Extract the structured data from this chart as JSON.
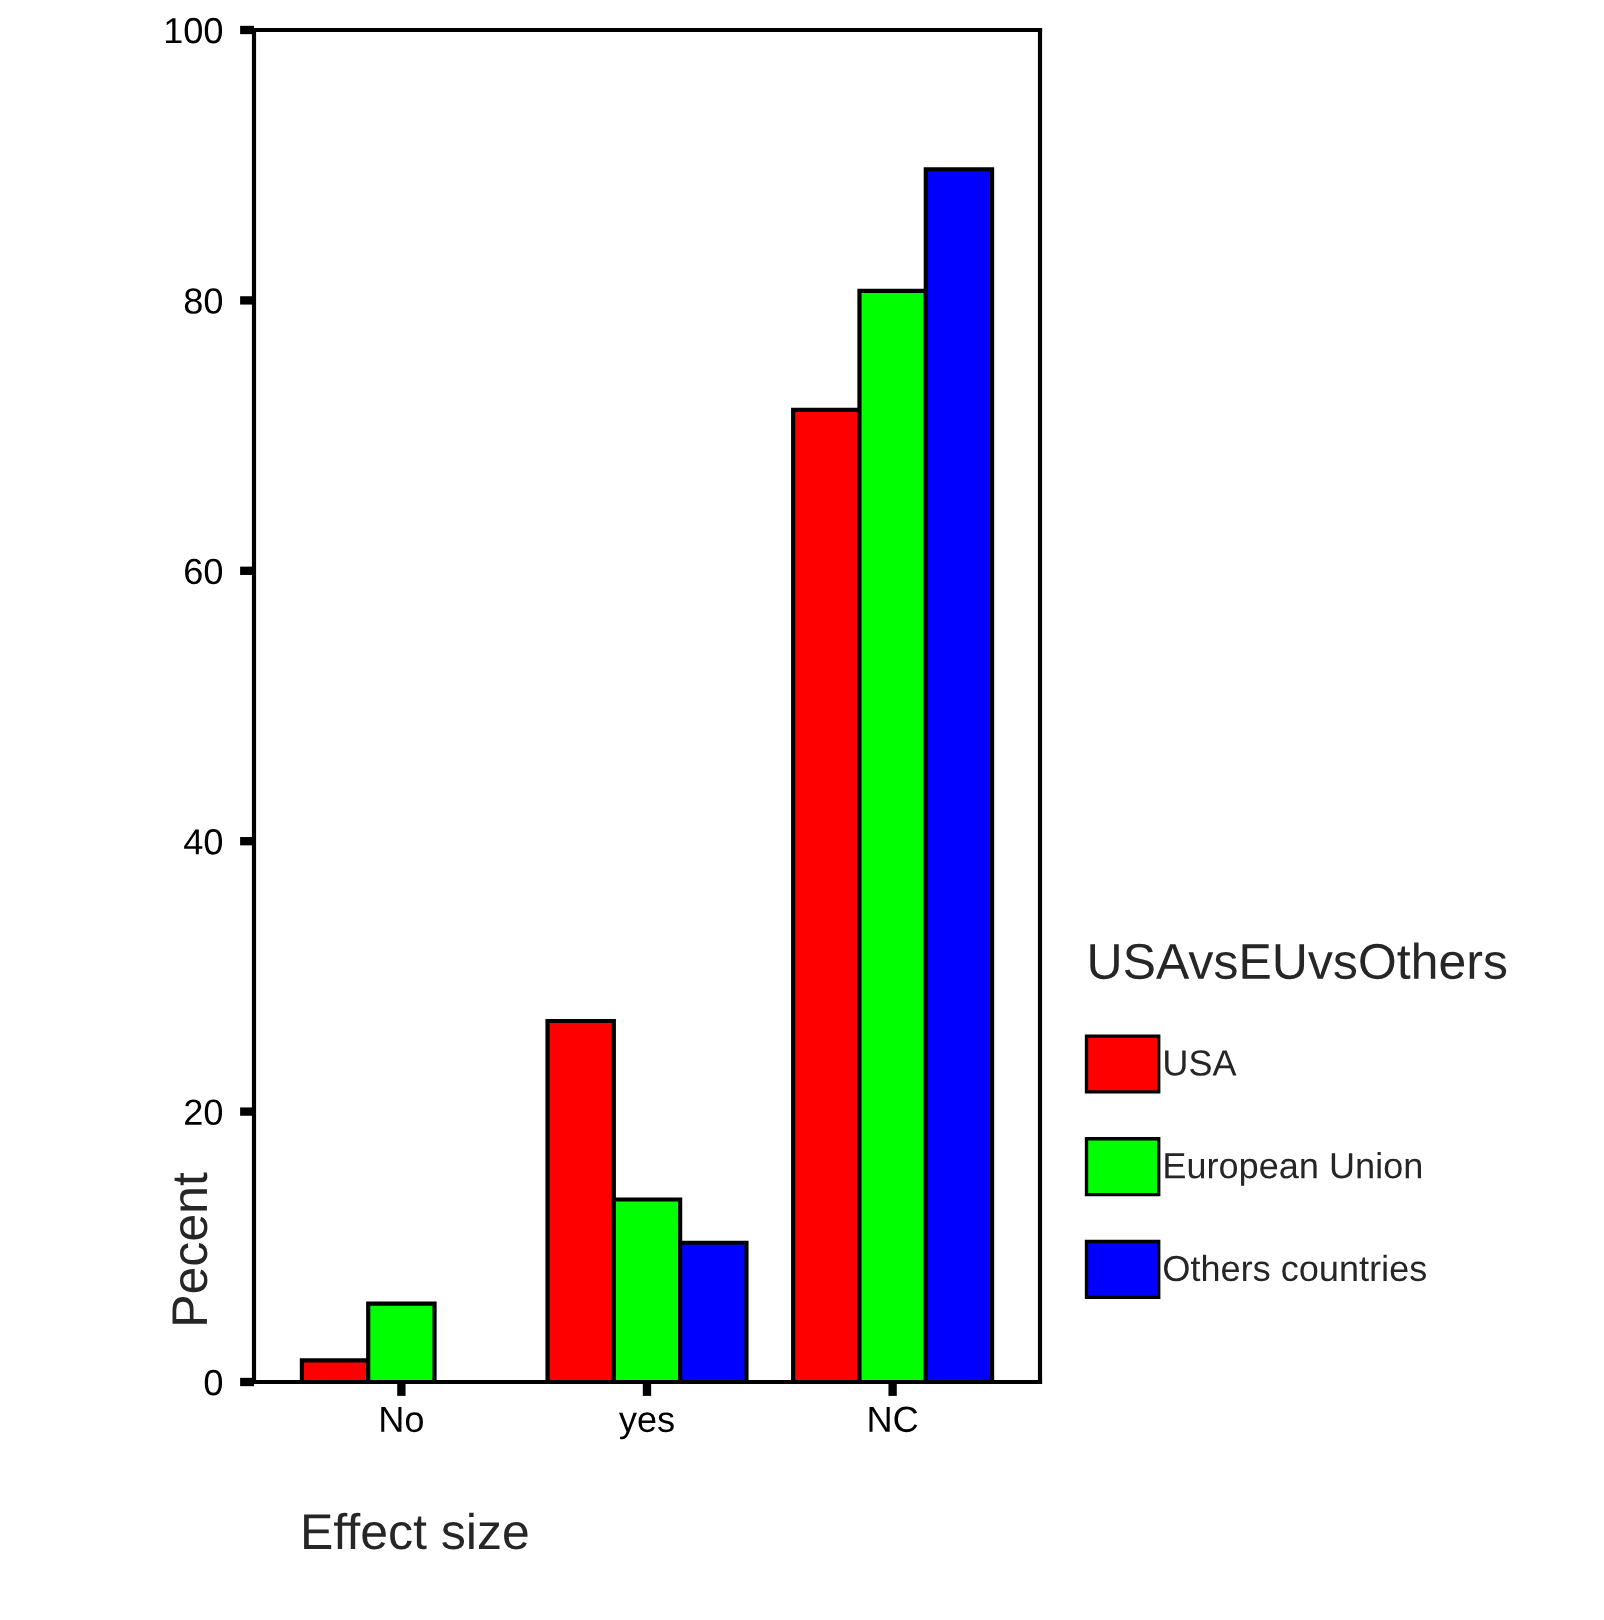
{
  "chart_data": {
    "type": "bar",
    "xlabel": "Effect size",
    "ylabel": "Pecent",
    "legend_title": "USAvsEUvsOthers",
    "categories": [
      "No",
      "yes",
      "NC"
    ],
    "series": [
      {
        "name": "USA",
        "color": "#ff0000",
        "values": [
          1.6,
          26.7,
          71.9
        ]
      },
      {
        "name": "European Union",
        "color": "#00ff00",
        "values": [
          5.8,
          13.5,
          80.7
        ]
      },
      {
        "name": "Others countries",
        "color": "#0000ff",
        "values": [
          0,
          10.3,
          89.7
        ]
      }
    ],
    "ylim": [
      0,
      100
    ],
    "yticks": [
      0,
      20,
      40,
      60,
      80,
      100
    ],
    "grid": false,
    "legend": "right"
  }
}
